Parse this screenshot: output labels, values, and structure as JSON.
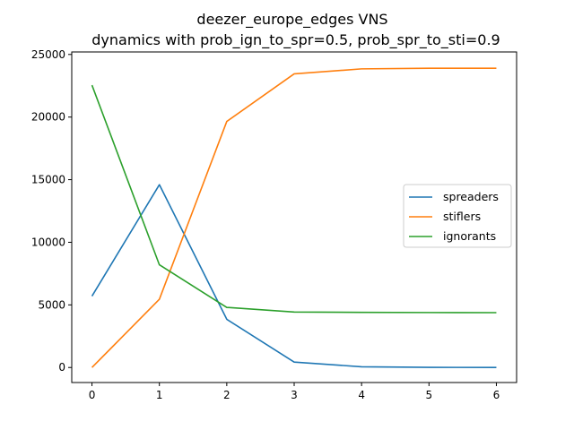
{
  "chart_data": {
    "type": "line",
    "title_line1": "deezer_europe_edges VNS",
    "title_line2": "dynamics with prob_ign_to_spr=0.5, prob_spr_to_sti=0.9",
    "xlabel": "",
    "ylabel": "",
    "x": [
      0,
      1,
      2,
      3,
      4,
      5,
      6
    ],
    "xlim": [
      -0.3,
      6.3
    ],
    "ylim": [
      -1200,
      25200
    ],
    "xticks": [
      "0",
      "1",
      "2",
      "3",
      "4",
      "5",
      "6"
    ],
    "yticks": [
      "0",
      "5000",
      "10000",
      "15000",
      "20000",
      "25000"
    ],
    "grid": false,
    "legend_position": "center-right",
    "series": [
      {
        "name": "spreaders",
        "color": "#1f77b4",
        "values": [
          5700,
          14600,
          3850,
          430,
          60,
          10,
          5
        ]
      },
      {
        "name": "stiflers",
        "color": "#ff7f0e",
        "values": [
          0,
          5450,
          19650,
          23450,
          23850,
          23900,
          23900
        ]
      },
      {
        "name": "ignorants",
        "color": "#2ca02c",
        "values": [
          22550,
          8200,
          4800,
          4430,
          4400,
          4390,
          4380
        ]
      }
    ]
  }
}
